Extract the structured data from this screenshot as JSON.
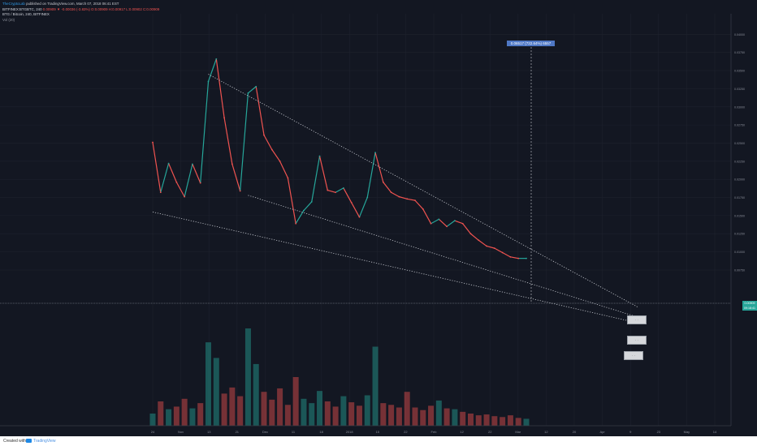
{
  "header": {
    "author": "TheCryptoLab",
    "published": "published on TradingView.com, March 07, 2018 06:41 EST",
    "symbol_line": "BITFINEX:BTGBTC, 240",
    "ohlc": "0.00909 ▼ -0.00036 (-3.83%) O:0.00909 H:0.00917 L:0.00902 C:0.00909",
    "pair_line": "BTG / Bitcoin, 240, BITFINEX",
    "volume_line": "Vol (20)"
  },
  "measure_label": "0.06517 (722.64%) 6557",
  "price_tags": {
    "last": "0.00909",
    "last_sub": "09:18:41"
  },
  "notes": [
    "  ·  ·  ",
    "  ·  ·  ",
    "  ·  ·  "
  ],
  "footer": {
    "created": "Created with",
    "brand": "TradingView"
  },
  "chart_data": {
    "type": "line",
    "title": "BTG / Bitcoin, 240, BITFINEX",
    "series": [
      {
        "name": "BTG / Bitcoin",
        "x": [
          "Oct 24",
          "Oct 27",
          "Oct 30",
          "Nov 2",
          "Nov 5",
          "Nov 8",
          "Nov 10",
          "Nov 12",
          "Nov 13",
          "Nov 15",
          "Nov 17",
          "Nov 19",
          "Nov 21",
          "Nov 22",
          "Nov 25",
          "Nov 28",
          "Dec 1",
          "Dec 3",
          "Dec 6",
          "Dec 9",
          "Dec 12",
          "Dec 15",
          "Dec 18",
          "Dec 20",
          "Dec 23",
          "Dec 26",
          "Dec 29",
          "Jan 1",
          "Jan 5",
          "Jan 9",
          "Jan 12",
          "Jan 15",
          "Jan 17",
          "Jan 19",
          "Jan 22",
          "Jan 26",
          "Jan 29",
          "Feb 1",
          "Feb 5",
          "Feb 9",
          "Feb 12",
          "Feb 15",
          "Feb 19",
          "Feb 23",
          "Feb 27",
          "Mar 2",
          "Mar 5",
          "Mar 7"
        ],
        "values": [
          0.0251,
          0.0182,
          0.0222,
          0.0196,
          0.0176,
          0.0221,
          0.0195,
          0.0335,
          0.0366,
          0.0285,
          0.0221,
          0.0184,
          0.0319,
          0.0328,
          0.0261,
          0.0241,
          0.0225,
          0.0202,
          0.0139,
          0.0157,
          0.0169,
          0.0232,
          0.0185,
          0.0182,
          0.0188,
          0.0168,
          0.0148,
          0.0175,
          0.0237,
          0.0196,
          0.0182,
          0.0176,
          0.0173,
          0.0171,
          0.0159,
          0.0139,
          0.0145,
          0.0135,
          0.0143,
          0.0139,
          0.0125,
          0.0116,
          0.0108,
          0.0105,
          0.0099,
          0.0093,
          0.0091,
          0.0091
        ]
      }
    ],
    "volume": [
      1.4,
      2.8,
      1.9,
      2.2,
      3.1,
      2.0,
      2.6,
      9.6,
      7.8,
      3.7,
      4.4,
      3.4,
      11.2,
      7.1,
      3.9,
      3.0,
      4.3,
      2.4,
      5.6,
      3.1,
      2.6,
      4.0,
      2.8,
      2.2,
      3.4,
      2.7,
      2.3,
      3.5,
      9.1,
      2.6,
      2.4,
      2.1,
      3.9,
      2.1,
      1.8,
      2.3,
      2.9,
      2.0,
      1.9,
      1.6,
      1.4,
      1.2,
      1.3,
      1.1,
      1.0,
      1.2,
      0.9,
      0.8
    ],
    "trendlines": [
      {
        "from": [
          "Nov 12",
          0.0345
        ],
        "to": [
          "Apr 10",
          0.0024
        ]
      },
      {
        "from": [
          "Nov 21",
          0.0178
        ],
        "to": [
          "Apr 10",
          0.001
        ]
      },
      {
        "from": [
          "Oct 24",
          0.0155
        ],
        "to": [
          "Apr 10",
          0.0002
        ]
      }
    ],
    "x_ticks": [
      "24",
      "Nov",
      "13",
      "21",
      "Dec",
      "11",
      "18",
      "2018",
      "15",
      "22",
      "Feb",
      "12",
      "22",
      "Mar",
      "12",
      "20",
      "Apr",
      "9",
      "23",
      "May",
      "14"
    ],
    "y_ticks": [
      "0.04000",
      "0.03750",
      "0.03500",
      "0.03250",
      "0.03000",
      "0.02750",
      "0.02500",
      "0.02250",
      "0.02000",
      "0.01750",
      "0.01500",
      "0.01250",
      "0.01000",
      "0.00750"
    ],
    "ylim": [
      0.0,
      0.0425
    ],
    "grid": true
  }
}
